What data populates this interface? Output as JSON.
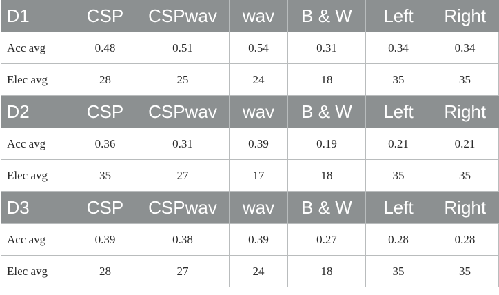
{
  "table": {
    "columns": [
      "CSP",
      "CSPwav",
      "wav",
      "B & W",
      "Left",
      "Right"
    ],
    "groups": [
      {
        "name": "D1",
        "rows": [
          {
            "label": "Acc avg",
            "values": [
              "0.48",
              "0.51",
              "0.54",
              "0.31",
              "0.34",
              "0.34"
            ]
          },
          {
            "label": "Elec avg",
            "values": [
              "28",
              "25",
              "24",
              "18",
              "35",
              "35"
            ]
          }
        ]
      },
      {
        "name": "D2",
        "rows": [
          {
            "label": "Acc avg",
            "values": [
              "0.36",
              "0.31",
              "0.39",
              "0.19",
              "0.21",
              "0.21"
            ]
          },
          {
            "label": "Elec avg",
            "values": [
              "35",
              "27",
              "17",
              "18",
              "35",
              "35"
            ]
          }
        ]
      },
      {
        "name": "D3",
        "rows": [
          {
            "label": "Acc avg",
            "values": [
              "0.39",
              "0.38",
              "0.39",
              "0.27",
              "0.28",
              "0.28"
            ]
          },
          {
            "label": "Elec avg",
            "values": [
              "28",
              "27",
              "24",
              "18",
              "35",
              "35"
            ]
          }
        ]
      }
    ]
  }
}
